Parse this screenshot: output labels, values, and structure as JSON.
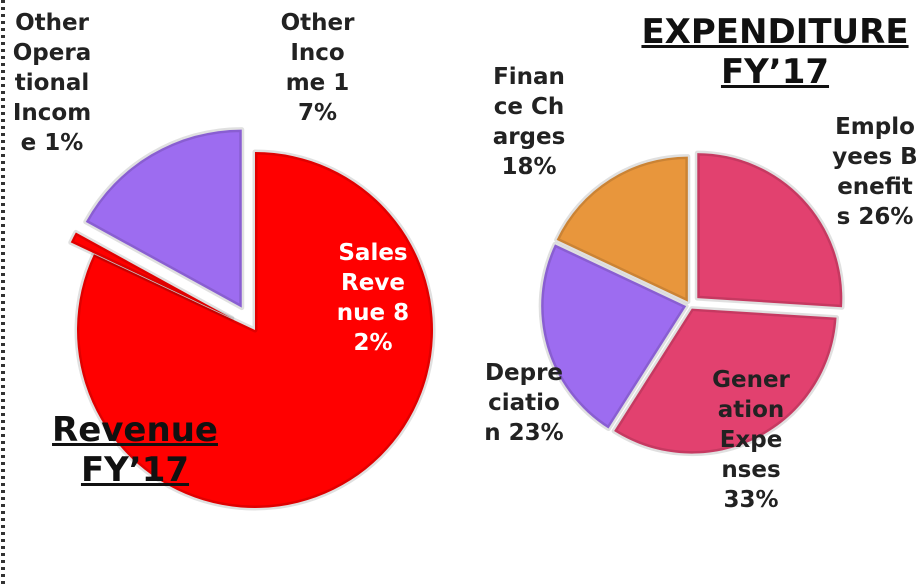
{
  "chart_data": [
    {
      "type": "pie",
      "title": "Revenue FY’17",
      "categories": [
        "Sales Revenue",
        "Other Operational Income",
        "Other Income"
      ],
      "values": [
        82,
        1,
        17
      ],
      "value_labels": [
        "82%",
        "1%",
        "17%"
      ],
      "colors": [
        "#ff0000",
        "#ff0000",
        "#9d6cf0"
      ]
    },
    {
      "type": "pie",
      "title": "EXPENDITURE FY’17",
      "categories": [
        "Employees Benefits",
        "Generation Expenses",
        "Depreciation",
        "Finance Charges"
      ],
      "values": [
        26,
        33,
        23,
        18
      ],
      "value_labels": [
        "26%",
        "33%",
        "23%",
        "18%"
      ],
      "colors": [
        "#e2416f",
        "#e2416f",
        "#9d6cf0",
        "#e8963c"
      ]
    }
  ]
}
